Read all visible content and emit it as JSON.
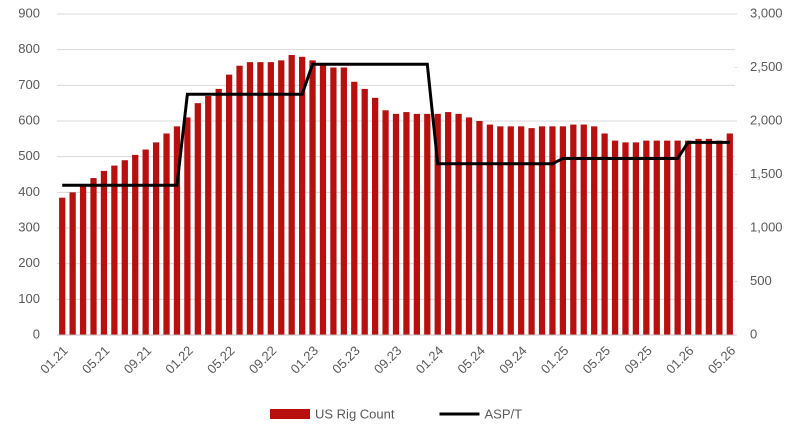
{
  "chart_data": {
    "type": "bar",
    "categories": [
      "01.21",
      null,
      null,
      null,
      "05.21",
      null,
      null,
      null,
      "09.21",
      null,
      null,
      null,
      "01.22",
      null,
      null,
      null,
      "05.22",
      null,
      null,
      null,
      "09.22",
      null,
      null,
      null,
      "01.23",
      null,
      null,
      null,
      "05.23",
      null,
      null,
      null,
      "09.23",
      null,
      null,
      null,
      "01.24",
      null,
      null,
      null,
      "05.24",
      null,
      null,
      null,
      "09.24",
      null,
      null,
      null,
      "01.25",
      null,
      null,
      null,
      "05.25",
      null,
      null,
      null,
      "09.25",
      null,
      null,
      null,
      "01.26",
      null,
      null,
      null,
      "05.26"
    ],
    "series": [
      {
        "name": "US Rig Count",
        "type": "bar",
        "color": "#b80f0f",
        "values": [
          385,
          400,
          420,
          440,
          460,
          475,
          490,
          505,
          520,
          540,
          565,
          585,
          610,
          650,
          670,
          690,
          730,
          755,
          765,
          765,
          765,
          770,
          785,
          780,
          770,
          760,
          750,
          750,
          710,
          690,
          665,
          630,
          620,
          625,
          620,
          620,
          620,
          625,
          620,
          610,
          600,
          590,
          585,
          585,
          585,
          580,
          585,
          585,
          585,
          590,
          590,
          585,
          565,
          545,
          540,
          540,
          545,
          545,
          545,
          545,
          545,
          550,
          550,
          545,
          565
        ]
      },
      {
        "name": "ASP/T",
        "type": "line",
        "color": "#000000",
        "axis": "y2",
        "values": [
          1400,
          1400,
          1400,
          1400,
          1400,
          1400,
          1400,
          1400,
          1400,
          1400,
          1400,
          1400,
          2250,
          2250,
          2250,
          2250,
          2250,
          2250,
          2250,
          2250,
          2250,
          2250,
          2250,
          2250,
          2530,
          2530,
          2530,
          2530,
          2530,
          2530,
          2530,
          2530,
          2530,
          2530,
          2530,
          2530,
          1600,
          1600,
          1600,
          1600,
          1600,
          1600,
          1600,
          1600,
          1600,
          1600,
          1600,
          1600,
          1650,
          1650,
          1650,
          1650,
          1650,
          1650,
          1650,
          1650,
          1650,
          1650,
          1650,
          1650,
          1800,
          1800,
          1800,
          1800,
          1800
        ]
      }
    ],
    "ylim": [
      0,
      900
    ],
    "yticks": [
      0,
      100,
      200,
      300,
      400,
      500,
      600,
      700,
      800,
      900
    ],
    "y2lim": [
      0,
      3000
    ],
    "y2ticks": [
      0,
      500,
      {
        "value": 1000,
        "label": "1,000"
      },
      {
        "value": 1500,
        "label": "1,500"
      },
      {
        "value": 2000,
        "label": "2,000"
      },
      {
        "value": 2500,
        "label": "2,500"
      },
      {
        "value": 3000,
        "label": "3,000"
      }
    ],
    "grid": true,
    "legend": "bottom"
  }
}
